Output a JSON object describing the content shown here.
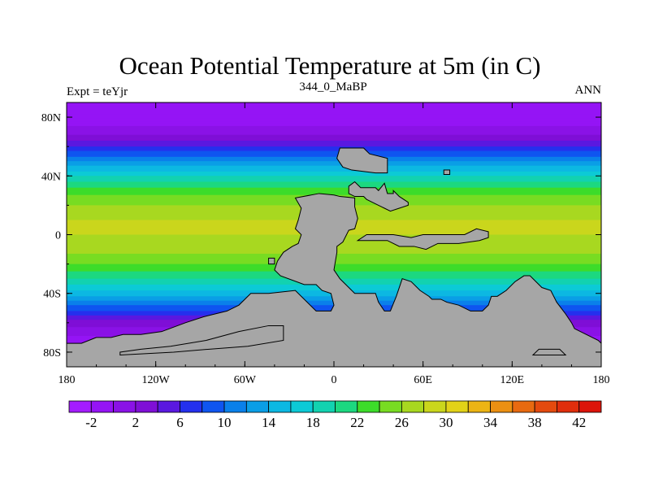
{
  "chart_data": {
    "type": "heatmap",
    "title": "Ocean Potential Temperature at 5m (in C)",
    "subtitle_left": "Expt = teYjr",
    "subtitle_center": "344_0_MaBP",
    "subtitle_right": "ANN",
    "units": "C",
    "xlim": [
      -180,
      180
    ],
    "ylim": [
      -90,
      90
    ],
    "x_ticks": [
      {
        "value": -180,
        "label": "180"
      },
      {
        "value": -120,
        "label": "120W"
      },
      {
        "value": -60,
        "label": "60W"
      },
      {
        "value": 0,
        "label": "0"
      },
      {
        "value": 60,
        "label": "60E"
      },
      {
        "value": 120,
        "label": "120E"
      },
      {
        "value": 180,
        "label": "180"
      }
    ],
    "y_ticks": [
      {
        "value": 80,
        "label": "80N"
      },
      {
        "value": 40,
        "label": "40N"
      },
      {
        "value": 0,
        "label": "0"
      },
      {
        "value": -40,
        "label": "40S"
      },
      {
        "value": -80,
        "label": "80S"
      }
    ],
    "zonal_mean_profile": {
      "lat": [
        -90,
        -80,
        -70,
        -60,
        -50,
        -40,
        -30,
        -20,
        -10,
        0,
        10,
        20,
        30,
        40,
        50,
        60,
        70,
        80,
        90
      ],
      "temp": [
        -2,
        -1.8,
        -0.5,
        3,
        9,
        15,
        20,
        24,
        27,
        28,
        28,
        26,
        23,
        18,
        12,
        6,
        1,
        -1.5,
        -2
      ]
    },
    "colorbar": {
      "levels": [
        -4,
        -2,
        0,
        2,
        4,
        6,
        8,
        10,
        12,
        14,
        16,
        18,
        20,
        22,
        24,
        26,
        28,
        30,
        32,
        34,
        36,
        38,
        40,
        42,
        44
      ],
      "tick_labels": [
        "-2",
        "2",
        "6",
        "10",
        "14",
        "18",
        "22",
        "26",
        "30",
        "34",
        "38",
        "42"
      ],
      "colors": [
        "#a41cff",
        "#9514f5",
        "#8a12e6",
        "#7f0fd6",
        "#5a18e0",
        "#2430ee",
        "#0f55f0",
        "#0a80ea",
        "#0a9ee6",
        "#0cb8e2",
        "#0ccad6",
        "#12d2b0",
        "#1cd880",
        "#3ddc2a",
        "#78dc22",
        "#a8d820",
        "#cad61c",
        "#e2d218",
        "#ecb414",
        "#ec9012",
        "#e86a10",
        "#e44a0e",
        "#e02e0c",
        "#dc140a"
      ]
    },
    "land_color": "#a6a6a6",
    "land_polygons": [
      {
        "name": "laurasia-north",
        "lonlat": [
          [
            2,
            52
          ],
          [
            4,
            59
          ],
          [
            20,
            59
          ],
          [
            24,
            55
          ],
          [
            36,
            52
          ],
          [
            36,
            42
          ],
          [
            28,
            42
          ],
          [
            12,
            44
          ],
          [
            6,
            46
          ],
          [
            2,
            52
          ]
        ]
      },
      {
        "name": "east-asia-block",
        "lonlat": [
          [
            10,
            33
          ],
          [
            14,
            36
          ],
          [
            18,
            32
          ],
          [
            28,
            32
          ],
          [
            30,
            30
          ],
          [
            34,
            35
          ],
          [
            36,
            28
          ],
          [
            40,
            28
          ],
          [
            40,
            30
          ],
          [
            44,
            26
          ],
          [
            50,
            22
          ],
          [
            50,
            20
          ],
          [
            44,
            18
          ],
          [
            38,
            16
          ],
          [
            34,
            18
          ],
          [
            30,
            20
          ],
          [
            26,
            22
          ],
          [
            22,
            24
          ],
          [
            20,
            26
          ],
          [
            14,
            26
          ],
          [
            10,
            28
          ],
          [
            10,
            33
          ]
        ]
      },
      {
        "name": "small-island-ne",
        "lonlat": [
          [
            74,
            44
          ],
          [
            78,
            44
          ],
          [
            78,
            41
          ],
          [
            74,
            41
          ],
          [
            74,
            44
          ]
        ]
      },
      {
        "name": "pangea-main",
        "lonlat": [
          [
            -26,
            25
          ],
          [
            -10,
            28
          ],
          [
            0,
            27
          ],
          [
            4,
            26
          ],
          [
            14,
            25
          ],
          [
            14,
            19
          ],
          [
            16,
            11
          ],
          [
            14,
            4
          ],
          [
            10,
            3
          ],
          [
            6,
            -5
          ],
          [
            2,
            -8
          ],
          [
            2,
            -12
          ],
          [
            0,
            -24
          ],
          [
            4,
            -30
          ],
          [
            14,
            -40
          ],
          [
            22,
            -40
          ],
          [
            28,
            -40
          ],
          [
            30,
            -46
          ],
          [
            34,
            -52
          ],
          [
            38,
            -52
          ],
          [
            42,
            -42
          ],
          [
            46,
            -30
          ],
          [
            52,
            -32
          ],
          [
            58,
            -38
          ],
          [
            64,
            -42
          ],
          [
            66,
            -44
          ],
          [
            72,
            -44
          ],
          [
            76,
            -46
          ],
          [
            84,
            -48
          ],
          [
            92,
            -52
          ],
          [
            100,
            -52
          ],
          [
            104,
            -48
          ],
          [
            106,
            -42
          ],
          [
            110,
            -42
          ],
          [
            116,
            -38
          ],
          [
            122,
            -32
          ],
          [
            128,
            -28
          ],
          [
            132,
            -28
          ],
          [
            136,
            -32
          ],
          [
            140,
            -36
          ],
          [
            146,
            -38
          ],
          [
            150,
            -46
          ],
          [
            156,
            -54
          ],
          [
            160,
            -60
          ],
          [
            162,
            -64
          ],
          [
            170,
            -68
          ],
          [
            178,
            -72
          ],
          [
            180,
            -74
          ],
          [
            180,
            -90
          ],
          [
            -180,
            -90
          ],
          [
            -180,
            -74
          ],
          [
            -170,
            -74
          ],
          [
            -160,
            -70
          ],
          [
            -150,
            -70
          ],
          [
            -142,
            -68
          ],
          [
            -130,
            -68
          ],
          [
            -116,
            -66
          ],
          [
            -100,
            -60
          ],
          [
            -88,
            -56
          ],
          [
            -72,
            -52
          ],
          [
            -64,
            -48
          ],
          [
            -56,
            -40
          ],
          [
            -44,
            -40
          ],
          [
            -26,
            -38
          ],
          [
            -12,
            -52
          ],
          [
            -2,
            -52
          ],
          [
            0,
            -48
          ],
          [
            -2,
            -40
          ],
          [
            -8,
            -38
          ],
          [
            -12,
            -34
          ],
          [
            -20,
            -34
          ],
          [
            -36,
            -28
          ],
          [
            -40,
            -24
          ],
          [
            -38,
            -18
          ],
          [
            -34,
            -12
          ],
          [
            -28,
            -8
          ],
          [
            -24,
            -6
          ],
          [
            -22,
            0
          ],
          [
            -26,
            4
          ],
          [
            -24,
            10
          ],
          [
            -22,
            18
          ],
          [
            -26,
            25
          ]
        ]
      },
      {
        "name": "tethys-strip",
        "lonlat": [
          [
            16,
            -4
          ],
          [
            36,
            -4
          ],
          [
            44,
            -8
          ],
          [
            54,
            -8
          ],
          [
            62,
            -10
          ],
          [
            70,
            -6
          ],
          [
            84,
            -6
          ],
          [
            98,
            -4
          ],
          [
            104,
            -2
          ],
          [
            104,
            2
          ],
          [
            96,
            4
          ],
          [
            88,
            0
          ],
          [
            70,
            0
          ],
          [
            60,
            0
          ],
          [
            52,
            -2
          ],
          [
            40,
            0
          ],
          [
            30,
            0
          ],
          [
            22,
            0
          ],
          [
            16,
            -4
          ]
        ]
      },
      {
        "name": "islet-west-1",
        "lonlat": [
          [
            -44,
            -20
          ],
          [
            -40,
            -20
          ],
          [
            -40,
            -16
          ],
          [
            -44,
            -16
          ],
          [
            -44,
            -20
          ]
        ]
      },
      {
        "name": "antarctic-strip",
        "lonlat": [
          [
            -144,
            -82
          ],
          [
            -108,
            -80
          ],
          [
            -84,
            -78
          ],
          [
            -58,
            -76
          ],
          [
            -34,
            -72
          ],
          [
            -34,
            -62
          ],
          [
            -44,
            -62
          ],
          [
            -64,
            -66
          ],
          [
            -86,
            -72
          ],
          [
            -110,
            -76
          ],
          [
            -130,
            -78
          ],
          [
            -144,
            -80
          ],
          [
            -144,
            -82
          ]
        ]
      },
      {
        "name": "far-east-islet",
        "lonlat": [
          [
            138,
            -78
          ],
          [
            152,
            -78
          ],
          [
            156,
            -82
          ],
          [
            134,
            -82
          ],
          [
            138,
            -78
          ]
        ]
      }
    ],
    "purple_shelf_polygons": [
      {
        "lonlat": [
          [
            -144,
            -82
          ],
          [
            -110,
            -79
          ],
          [
            -84,
            -78
          ],
          [
            -58,
            -76
          ],
          [
            -34,
            -74
          ],
          [
            -34,
            -62
          ],
          [
            -48,
            -62
          ],
          [
            -62,
            -64
          ],
          [
            -80,
            -70
          ],
          [
            -98,
            -74
          ],
          [
            -116,
            -77
          ],
          [
            -138,
            -79
          ],
          [
            -144,
            -80
          ],
          [
            -144,
            -82
          ]
        ]
      },
      {
        "lonlat": [
          [
            140,
            -78
          ],
          [
            152,
            -78
          ],
          [
            154,
            -82
          ],
          [
            136,
            -82
          ],
          [
            140,
            -78
          ]
        ]
      }
    ]
  }
}
